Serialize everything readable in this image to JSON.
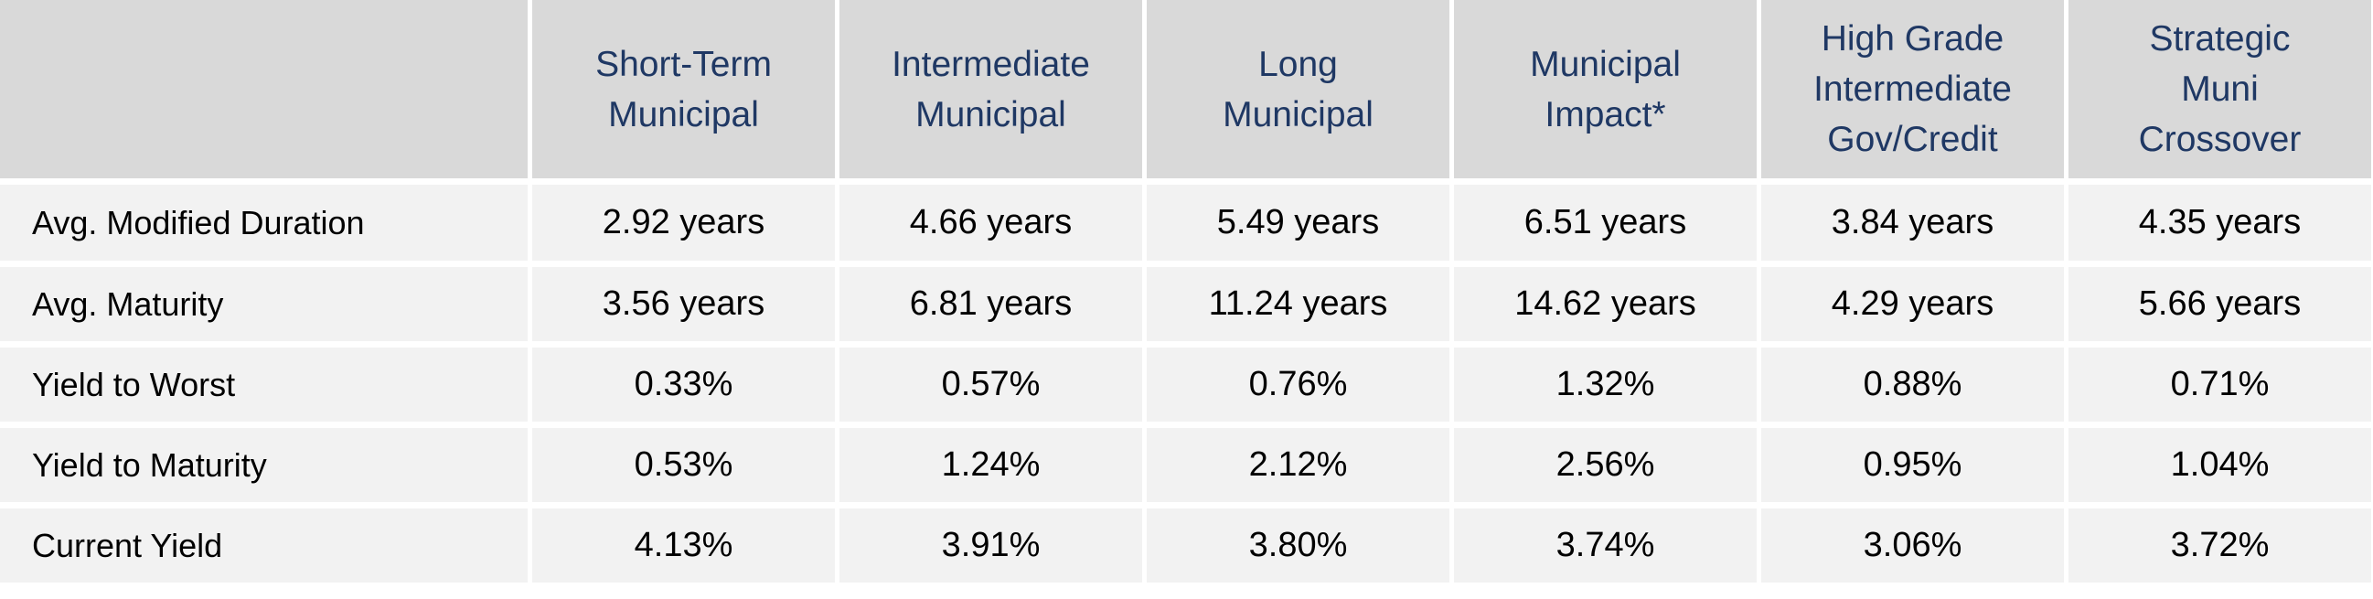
{
  "table": {
    "columns": [
      "Short-Term\nMunicipal",
      "Intermediate\nMunicipal",
      "Long\nMunicipal",
      "Municipal\nImpact*",
      "High Grade\nIntermediate\nGov/Credit",
      "Strategic\nMuni\nCrossover"
    ],
    "rows": [
      {
        "label": "Avg. Modified Duration",
        "values": [
          "2.92 years",
          "4.66 years",
          "5.49 years",
          "6.51 years",
          "3.84 years",
          "4.35 years"
        ]
      },
      {
        "label": "Avg. Maturity",
        "values": [
          "3.56 years",
          "6.81 years",
          "11.24 years",
          "14.62 years",
          "4.29 years",
          "5.66 years"
        ]
      },
      {
        "label": "Yield to Worst",
        "values": [
          "0.33%",
          "0.57%",
          "0.76%",
          "1.32%",
          "0.88%",
          "0.71%"
        ]
      },
      {
        "label": "Yield to Maturity",
        "values": [
          "0.53%",
          "1.24%",
          "2.12%",
          "2.56%",
          "0.95%",
          "1.04%"
        ]
      },
      {
        "label": "Current Yield",
        "values": [
          "4.13%",
          "3.91%",
          "3.80%",
          "3.74%",
          "3.06%",
          "3.72%"
        ]
      }
    ]
  }
}
